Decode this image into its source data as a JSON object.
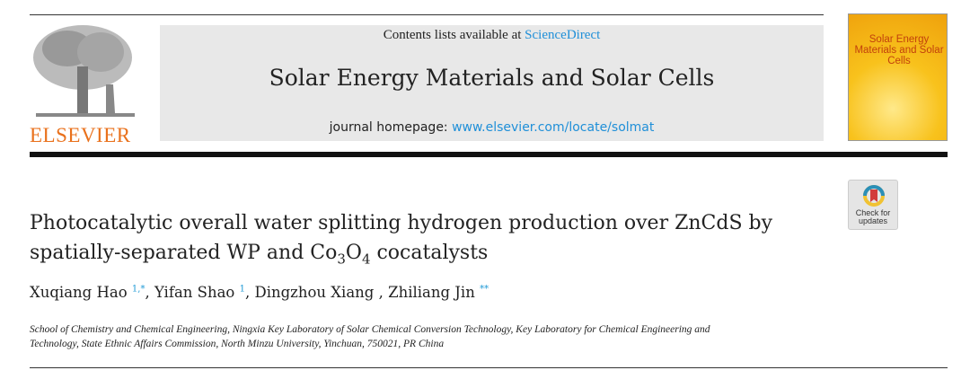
{
  "header": {
    "publisher_logo_text": "ELSEVIER",
    "contents_prefix": "Contents lists available at ",
    "contents_link": "ScienceDirect",
    "journal_title": "Solar Energy Materials and Solar Cells",
    "homepage_prefix": "journal homepage: ",
    "homepage_link": "www.elsevier.com/locate/solmat",
    "cover_title": "Solar Energy Materials and Solar Cells",
    "check_updates": "Check for updates"
  },
  "article": {
    "title_line1": "Photocatalytic overall water splitting hydrogen production over ZnCdS by",
    "title_line2_a": "spatially-separated WP and Co",
    "title_sub1": "3",
    "title_line2_b": "O",
    "title_sub2": "4",
    "title_line2_c": " cocatalysts",
    "authors": [
      {
        "name": "Xuqiang Hao",
        "mark": "1,*"
      },
      {
        "name": "Yifan Shao",
        "mark": "1"
      },
      {
        "name": "Dingzhou Xiang",
        "mark": ""
      },
      {
        "name": "Zhiliang Jin",
        "mark": "**"
      }
    ],
    "affiliation_line1": "School of Chemistry and Chemical Engineering, Ningxia Key Laboratory of Solar Chemical Conversion Technology, Key Laboratory for Chemical Engineering and",
    "affiliation_line2": "Technology, State Ethnic Affairs Commission, North Minzu University, Yinchuan, 750021, PR China"
  },
  "colors": {
    "link": "#1f8fd8",
    "elsevier_orange": "#e9711c",
    "banner_gray": "#e8e8e8"
  }
}
